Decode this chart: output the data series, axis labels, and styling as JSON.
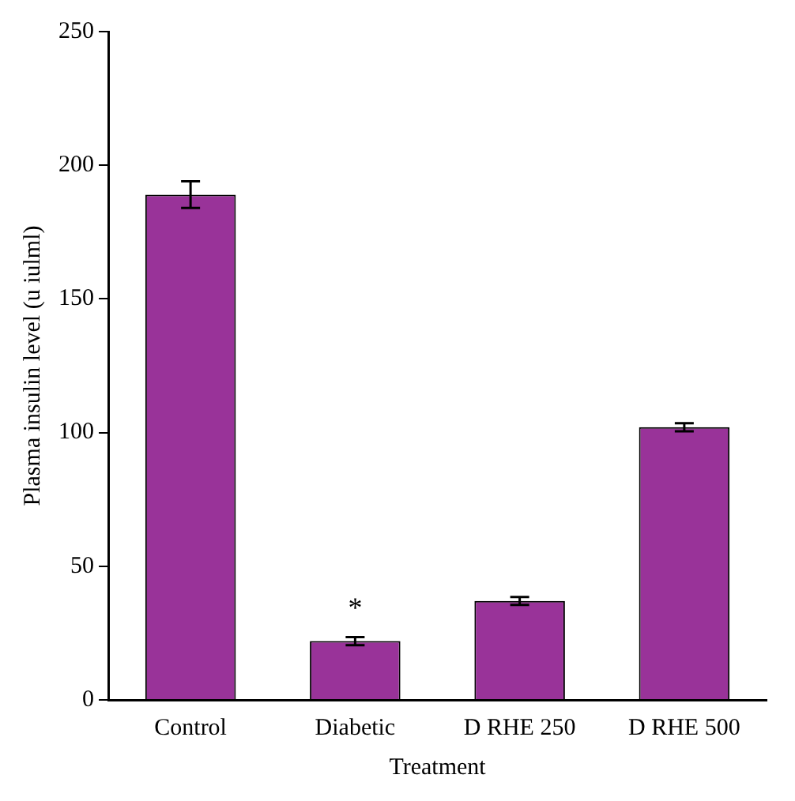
{
  "chart_data": {
    "type": "bar",
    "xlabel": "Treatment",
    "ylabel": "Plasma insulin level (u iulml)",
    "categories": [
      "Control",
      "Diabetic",
      "D RHE 250",
      "D RHE 500"
    ],
    "series": [
      {
        "color": "#993399",
        "values": [
          189,
          22,
          37,
          102
        ],
        "errors": [
          5,
          1.5,
          1.5,
          1.5
        ]
      }
    ],
    "ylim": [
      0,
      250
    ],
    "yticks": [
      0,
      50,
      100,
      150,
      200,
      250
    ],
    "grid": false,
    "legend": false,
    "annotations": [
      {
        "text": "*",
        "x": "Diabetic",
        "y": 22
      }
    ]
  }
}
